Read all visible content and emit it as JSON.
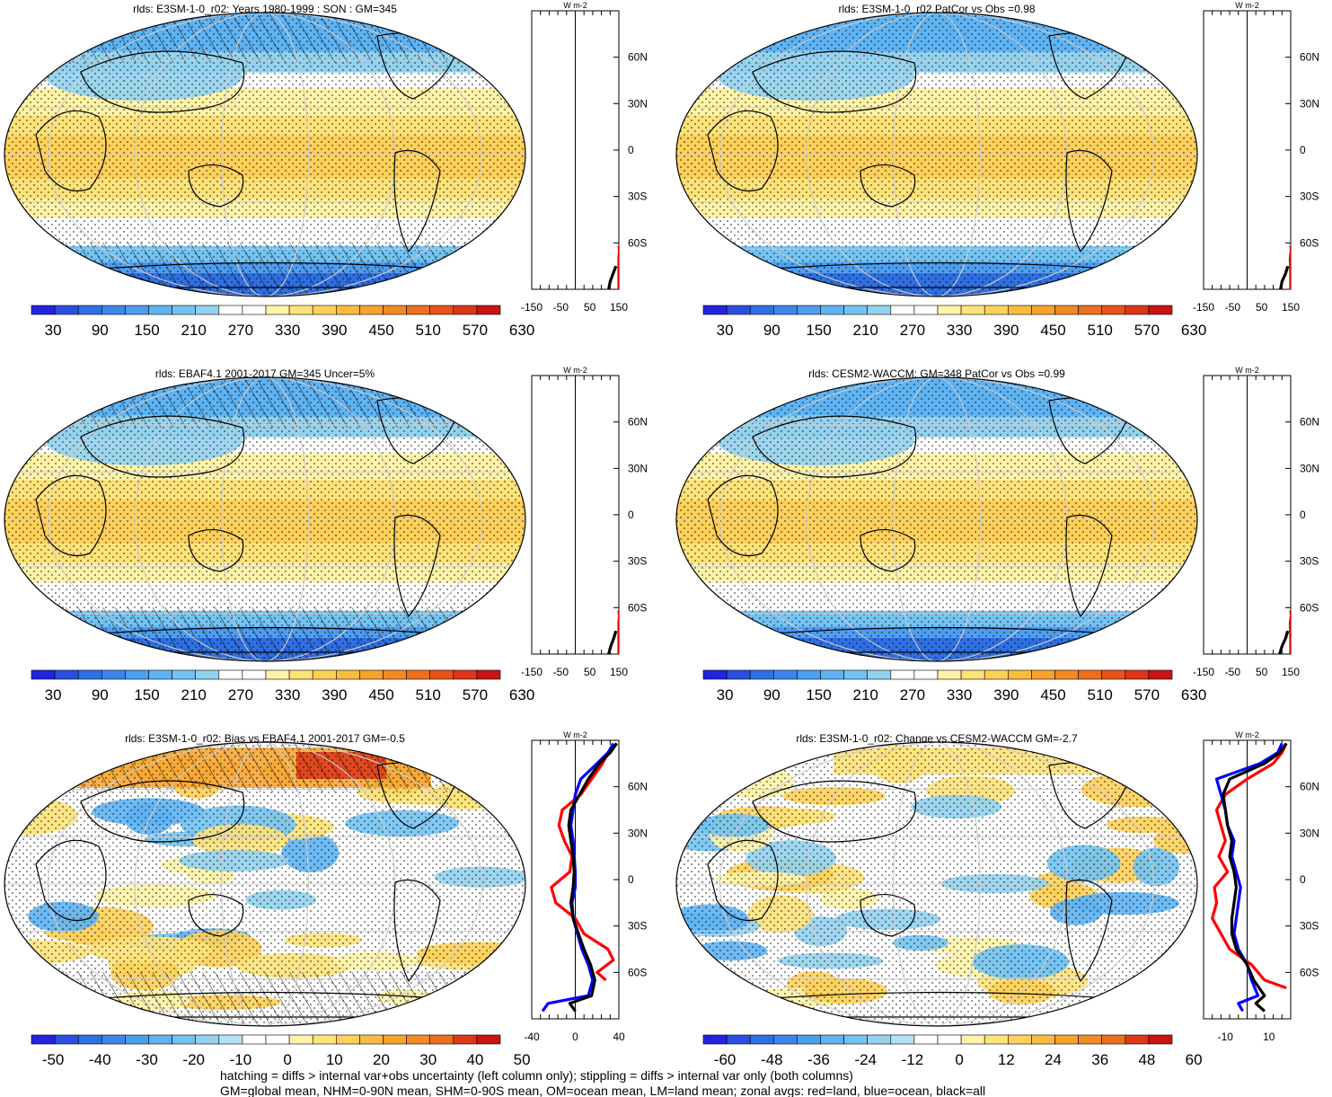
{
  "footer": {
    "line1": "hatching = diffs > internal var+obs uncertainty (left column only); stippling = diffs > internal var only (both columns)",
    "line2": "GM=global mean, NHM=0-90N mean, SHM=0-90S mean, OM=ocean mean, LM=land mean; zonal avgs: red=land, blue=ocean, black=all"
  },
  "chart_data": [
    {
      "type": "heatmap",
      "title": "rlds: E3SM-1-0_r02: Years 1980-1999 : SON : GM=345",
      "colorbar_labels": [
        "30",
        "90",
        "150",
        "210",
        "270",
        "330",
        "390",
        "450",
        "510",
        "570",
        "630"
      ],
      "zonal_units": "W m-2",
      "lat_labels": [
        "60N",
        "30N",
        "0",
        "30S",
        "60S"
      ],
      "zonal_xticks": [
        "-150",
        "-50",
        "50",
        "150"
      ],
      "zonal_xrange": [
        -150,
        150
      ],
      "zonal_series": [
        {
          "lat": [
            -90,
            -80,
            -70,
            -65,
            -62
          ],
          "values": [
            150,
            150,
            150,
            152,
            150
          ]
        },
        {
          "lat": [
            -90,
            -85,
            -80,
            -75
          ],
          "values": [
            115,
            120,
            130,
            140
          ]
        }
      ]
    },
    {
      "type": "heatmap",
      "title": "rlds: E3SM-1-0_r02 PatCor vs Obs =0.98",
      "colorbar_labels": [
        "30",
        "90",
        "150",
        "210",
        "270",
        "330",
        "390",
        "450",
        "510",
        "570",
        "630"
      ],
      "zonal_units": "W m-2",
      "lat_labels": [
        "60N",
        "30N",
        "0",
        "30S",
        "60S"
      ],
      "zonal_xticks": [
        "-150",
        "-50",
        "50",
        "150"
      ],
      "zonal_xrange": [
        -150,
        150
      ],
      "zonal_series": [
        {
          "lat": [
            -90,
            -80,
            -70,
            -65,
            -62
          ],
          "values": [
            150,
            150,
            148,
            152,
            150
          ]
        },
        {
          "lat": [
            -90,
            -85,
            -80,
            -75
          ],
          "values": [
            115,
            120,
            132,
            140
          ]
        }
      ]
    },
    {
      "type": "heatmap",
      "title": "rlds: EBAF4.1 2001-2017 GM=345 Uncer=5%",
      "colorbar_labels": [
        "30",
        "90",
        "150",
        "210",
        "270",
        "330",
        "390",
        "450",
        "510",
        "570",
        "630"
      ],
      "zonal_units": "W m-2",
      "lat_labels": [
        "60N",
        "30N",
        "0",
        "30S",
        "60S"
      ],
      "zonal_xticks": [
        "-150",
        "-50",
        "50",
        "150"
      ],
      "zonal_xrange": [
        -150,
        150
      ],
      "zonal_series": [
        {
          "lat": [
            -90,
            -80,
            -70,
            -65,
            -62
          ],
          "values": [
            150,
            150,
            150,
            152,
            150
          ]
        },
        {
          "lat": [
            -90,
            -85,
            -80,
            -75
          ],
          "values": [
            115,
            122,
            132,
            140
          ]
        }
      ]
    },
    {
      "type": "heatmap",
      "title": "rlds: CESM2-WACCM: GM=348 PatCor vs Obs =0.99",
      "colorbar_labels": [
        "30",
        "90",
        "150",
        "210",
        "270",
        "330",
        "390",
        "450",
        "510",
        "570",
        "630"
      ],
      "zonal_units": "W m-2",
      "lat_labels": [
        "60N",
        "30N",
        "0",
        "30S",
        "60S"
      ],
      "zonal_xticks": [
        "-150",
        "-50",
        "50",
        "150"
      ],
      "zonal_xrange": [
        -150,
        150
      ],
      "zonal_series": [
        {
          "lat": [
            -90,
            -80,
            -70,
            -65,
            -62
          ],
          "values": [
            150,
            150,
            148,
            152,
            150
          ]
        },
        {
          "lat": [
            -90,
            -85,
            -80,
            -75
          ],
          "values": [
            112,
            120,
            132,
            140
          ]
        }
      ]
    },
    {
      "type": "heatmap",
      "title": "rlds: E3SM-1-0_r02: Bias vs EBAF4.1 2001-2017  GM=-0.5",
      "colorbar_labels": [
        "-50",
        "-40",
        "-30",
        "-20",
        "-10",
        "0",
        "10",
        "20",
        "30",
        "40",
        "50"
      ],
      "zonal_units": "W m-2",
      "lat_labels": [
        "60N",
        "30N",
        "0",
        "30S",
        "60S"
      ],
      "zonal_xticks": [
        "-40",
        "0",
        "40"
      ],
      "zonal_xrange": [
        -40,
        40
      ],
      "zonal_series": [
        {
          "lat": [
            88,
            82,
            75,
            65,
            55,
            45,
            35,
            25,
            15,
            5,
            -5,
            -15,
            -25,
            -35,
            -45,
            -52,
            -60,
            -65
          ],
          "values": [
            38,
            30,
            25,
            15,
            5,
            -12,
            -15,
            -10,
            -3,
            -5,
            -22,
            -18,
            0,
            8,
            30,
            35,
            20,
            28
          ]
        },
        {
          "lat": [
            88,
            82,
            75,
            65,
            55,
            45,
            35,
            25,
            15,
            5,
            -5,
            -15,
            -25,
            -35,
            -45,
            -55,
            -65,
            -75,
            -80,
            -85
          ],
          "values": [
            35,
            30,
            20,
            5,
            0,
            -2,
            -4,
            -2,
            -1,
            0,
            0,
            -3,
            -2,
            2,
            6,
            12,
            16,
            12,
            -25,
            -30
          ]
        },
        {
          "lat": [
            88,
            82,
            75,
            65,
            55,
            45,
            35,
            25,
            15,
            5,
            -5,
            -15,
            -25,
            -35,
            -45,
            -55,
            -65,
            -75,
            -80,
            -85
          ],
          "values": [
            38,
            32,
            22,
            12,
            4,
            -4,
            -6,
            -4,
            -2,
            -1,
            -2,
            -4,
            -2,
            3,
            8,
            14,
            18,
            15,
            -5,
            0
          ]
        }
      ]
    },
    {
      "type": "heatmap",
      "title": "rlds: E3SM-1-0_r02: Change vs CESM2-WACCM GM=-2.7",
      "colorbar_labels": [
        "-60",
        "-48",
        "-36",
        "-24",
        "-12",
        "0",
        "12",
        "24",
        "36",
        "48",
        "60"
      ],
      "zonal_units": "W m-2",
      "lat_labels": [
        "60N",
        "30N",
        "0",
        "30S",
        "60S"
      ],
      "zonal_xticks": [
        "-10",
        "10"
      ],
      "zonal_xrange": [
        -20,
        20
      ],
      "zonal_series": [
        {
          "lat": [
            88,
            82,
            75,
            65,
            55,
            45,
            35,
            25,
            15,
            5,
            -5,
            -15,
            -25,
            -35,
            -45,
            -55,
            -65,
            -70
          ],
          "values": [
            18,
            16,
            12,
            0,
            -10,
            -14,
            -12,
            -10,
            -13,
            -9,
            -15,
            -14,
            -16,
            -12,
            -8,
            2,
            8,
            18
          ]
        },
        {
          "lat": [
            88,
            82,
            75,
            65,
            55,
            45,
            35,
            25,
            15,
            5,
            -5,
            -15,
            -25,
            -35,
            -45,
            -55,
            -65,
            -75,
            -80,
            -85
          ],
          "values": [
            16,
            14,
            6,
            -14,
            -12,
            -10,
            -9,
            -6,
            -7,
            -5,
            -3,
            -4,
            -5,
            -6,
            -4,
            0,
            2,
            5,
            -4,
            -2
          ]
        },
        {
          "lat": [
            88,
            82,
            75,
            65,
            55,
            45,
            35,
            25,
            15,
            5,
            -5,
            -15,
            -25,
            -35,
            -45,
            -55,
            -65,
            -75,
            -80,
            -85
          ],
          "values": [
            18,
            15,
            8,
            -8,
            -11,
            -10,
            -9,
            -7,
            -8,
            -6,
            -5,
            -6,
            -7,
            -7,
            -5,
            0,
            3,
            8,
            4,
            8
          ]
        }
      ]
    }
  ]
}
